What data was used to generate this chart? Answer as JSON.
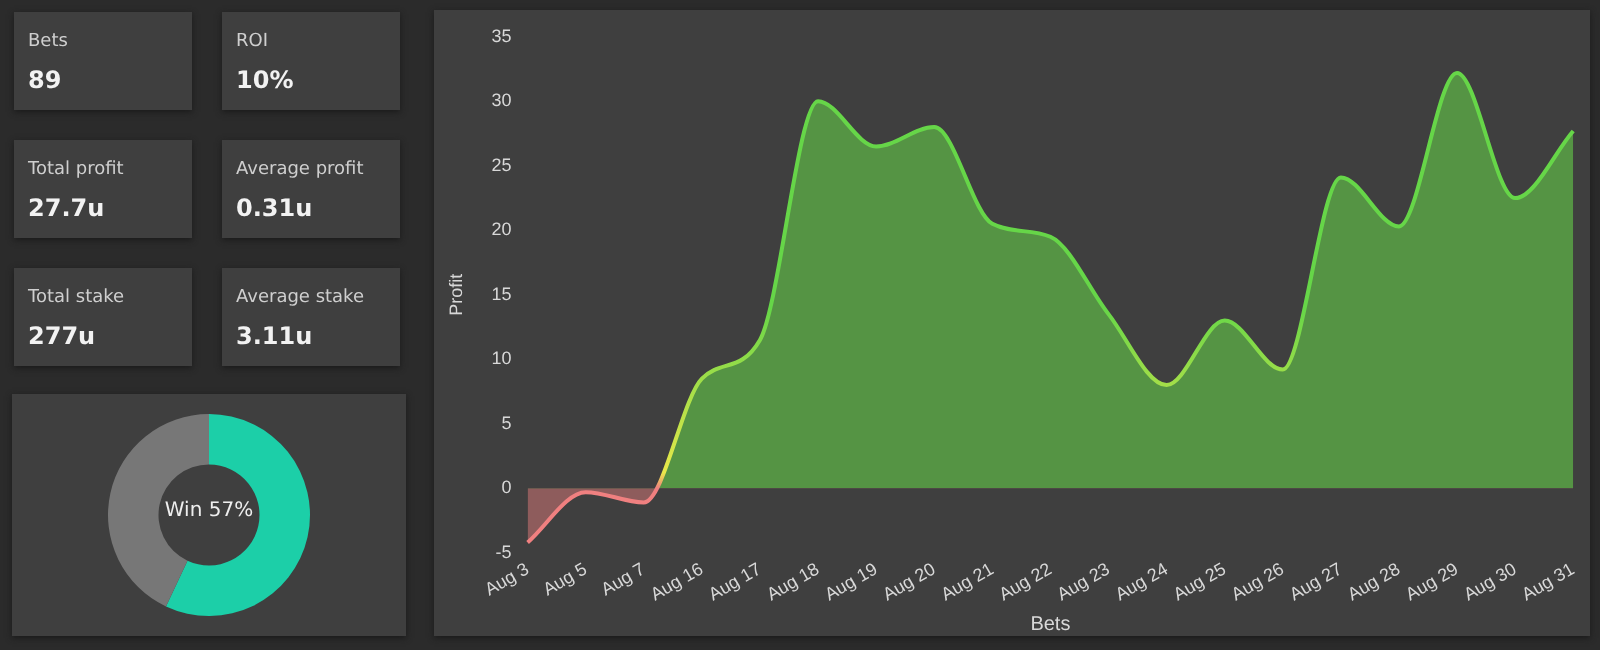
{
  "chart_data": [
    {
      "type": "other",
      "categories": [
        "Bets",
        "ROI",
        "Total profit",
        "Average profit",
        "Total stake",
        "Average stake"
      ],
      "value_labels": [
        "89",
        "10%",
        "27.7u",
        "0.31u",
        "277u",
        "3.11u"
      ]
    },
    {
      "type": "donut",
      "categories": [
        "Win",
        null
      ],
      "values": [
        57,
        43
      ],
      "colors": [
        "#1ccfa8",
        "#777777"
      ],
      "value_labels": [
        "57%",
        null
      ]
    },
    {
      "type": "area",
      "xlabel": "Bets",
      "ylabel": "Profit",
      "categories": [
        "Aug 3",
        "Aug 5",
        "Aug 7",
        "Aug 16",
        "Aug 17",
        "Aug 18",
        "Aug 19",
        "Aug 20",
        "Aug 21",
        "Aug 22",
        "Aug 23",
        "Aug 24",
        "Aug 25",
        "Aug 26",
        "Aug 27",
        "Aug 28",
        "Aug 29",
        "Aug 30",
        "Aug 31"
      ],
      "series": [
        {
          "color": "#66d648",
          "values": [
            -4.2,
            -0.3,
            -1.1,
            8.5,
            11.5,
            30,
            26.5,
            28,
            20.5,
            19.5,
            13.5,
            8,
            13,
            9.2,
            24.1,
            20.3,
            32.2,
            22.5,
            27.7
          ]
        }
      ],
      "ylim": [
        -5,
        35
      ],
      "yticks": [
        -5,
        0,
        5,
        10,
        15,
        20,
        25,
        30,
        35
      ],
      "grid": false,
      "legend": false
    }
  ]
}
